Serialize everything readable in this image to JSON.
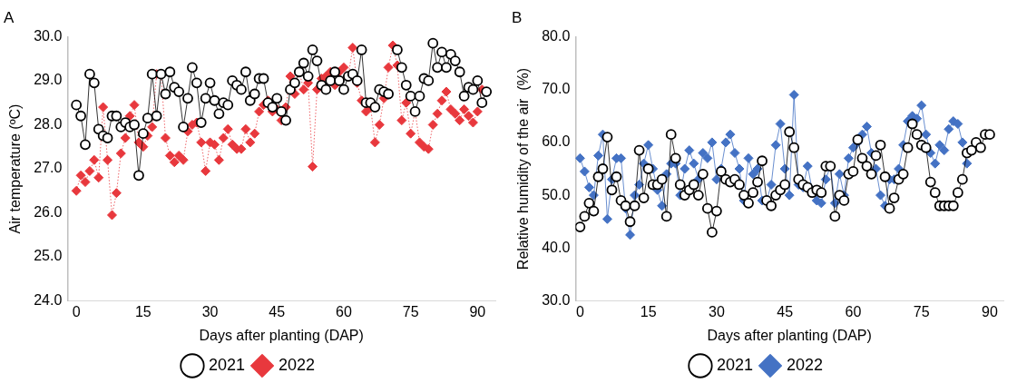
{
  "chart_data": [
    {
      "type": "line",
      "title": "A",
      "xlabel": "Days after planting (DAP)",
      "ylabel": "Air temperature (ºC)",
      "xlim": [
        -2,
        94
      ],
      "xticks": [
        0,
        15,
        30,
        45,
        60,
        75,
        90
      ],
      "ylim": [
        24,
        30
      ],
      "yticks": [
        {
          "value": 24,
          "label": "24.0"
        },
        {
          "value": 25,
          "label": "25.0"
        },
        {
          "value": 26,
          "label": "26.0"
        },
        {
          "value": 27,
          "label": "27.0"
        },
        {
          "value": 28,
          "label": "28.0"
        },
        {
          "value": 29,
          "label": "29.0"
        },
        {
          "value": 30,
          "label": "30.0"
        }
      ],
      "legend": "bottom",
      "grid": false,
      "series": [
        {
          "name": "2021",
          "color": "#000000",
          "marker": "circle",
          "line_style": "solid",
          "x": [
            0,
            1,
            2,
            3,
            4,
            5,
            6,
            7,
            8,
            9,
            10,
            11,
            12,
            13,
            14,
            15,
            16,
            17,
            18,
            19,
            20,
            21,
            22,
            23,
            24,
            25,
            26,
            27,
            28,
            29,
            30,
            31,
            32,
            33,
            34,
            35,
            36,
            37,
            38,
            39,
            40,
            41,
            42,
            43,
            44,
            45,
            46,
            47,
            48,
            49,
            50,
            51,
            52,
            53,
            54,
            55,
            56,
            57,
            58,
            59,
            60,
            61,
            62,
            63,
            64,
            65,
            66,
            67,
            68,
            69,
            70,
            71,
            72,
            73,
            74,
            75,
            76,
            77,
            78,
            79,
            80,
            81,
            82,
            83,
            84,
            85,
            86,
            87,
            88,
            89,
            90,
            91,
            92
          ],
          "values": [
            28.45,
            28.2,
            27.55,
            29.15,
            28.95,
            27.9,
            27.75,
            27.7,
            28.2,
            28.2,
            27.95,
            28.05,
            27.95,
            28.0,
            26.85,
            27.8,
            28.15,
            29.15,
            28.2,
            29.15,
            28.7,
            29.2,
            28.85,
            28.75,
            27.95,
            28.6,
            29.3,
            28.95,
            28.05,
            28.6,
            28.95,
            28.55,
            28.25,
            28.5,
            28.45,
            29.0,
            28.9,
            28.8,
            29.2,
            28.55,
            28.7,
            29.05,
            29.05,
            28.5,
            28.4,
            28.6,
            28.3,
            28.1,
            28.8,
            28.95,
            29.2,
            29.4,
            29.1,
            29.7,
            29.45,
            28.9,
            28.8,
            29.0,
            29.2,
            29.0,
            28.8,
            29.1,
            29.15,
            29.0,
            29.7,
            28.5,
            28.5,
            28.4,
            28.8,
            28.75,
            28.7,
            null,
            29.7,
            29.3,
            28.9,
            28.65,
            28.3,
            28.65,
            29.05,
            29.0,
            29.85,
            29.3,
            29.65,
            29.3,
            29.6,
            29.45,
            29.2,
            28.65,
            28.85,
            28.8,
            29.0,
            28.5,
            28.75
          ]
        },
        {
          "name": "2022",
          "color": "#e8383d",
          "marker": "diamond",
          "line_style": "dotted",
          "x": [
            0,
            1,
            2,
            3,
            4,
            5,
            6,
            7,
            8,
            9,
            10,
            11,
            12,
            13,
            14,
            15,
            16,
            17,
            18,
            19,
            20,
            21,
            22,
            23,
            24,
            25,
            26,
            27,
            28,
            29,
            30,
            31,
            32,
            33,
            34,
            35,
            36,
            37,
            38,
            39,
            40,
            41,
            42,
            43,
            44,
            45,
            46,
            47,
            48,
            49,
            50,
            51,
            52,
            53,
            54,
            55,
            56,
            57,
            58,
            59,
            60,
            61,
            62,
            63,
            64,
            65,
            66,
            67,
            68,
            69,
            70,
            71,
            72,
            73,
            74,
            75,
            76,
            77,
            78,
            79,
            80,
            81,
            82,
            83,
            84,
            85,
            86,
            87,
            88,
            89,
            90,
            91
          ],
          "values": [
            26.5,
            26.85,
            26.7,
            26.95,
            27.2,
            26.8,
            28.4,
            27.2,
            25.95,
            26.45,
            27.35,
            27.7,
            28.2,
            28.45,
            27.6,
            27.5,
            27.75,
            27.95,
            29.15,
            29.15,
            27.7,
            27.3,
            27.15,
            27.3,
            27.2,
            27.85,
            28.0,
            28.05,
            27.6,
            26.95,
            27.6,
            27.55,
            27.2,
            27.7,
            27.9,
            27.55,
            27.45,
            27.45,
            27.9,
            27.6,
            27.8,
            28.3,
            28.45,
            28.55,
            28.3,
            28.35,
            28.1,
            28.4,
            29.1,
            28.7,
            29.2,
            28.8,
            28.95,
            27.05,
            28.8,
            29.05,
            29.1,
            29.2,
            28.9,
            29.2,
            29.3,
            29.1,
            29.75,
            28.95,
            28.55,
            28.3,
            28.4,
            27.6,
            28.0,
            28.6,
            29.3,
            29.8,
            29.35,
            28.1,
            28.5,
            27.8,
            28.3,
            27.6,
            27.5,
            27.45,
            28.0,
            28.25,
            28.55,
            28.75,
            28.35,
            28.25,
            28.1,
            28.35,
            28.2,
            28.05,
            28.3,
            28.8
          ]
        }
      ]
    },
    {
      "type": "line",
      "title": "B",
      "xlabel": "Days after planting (DAP)",
      "ylabel": "Relative humidity of the air  (%)",
      "xlim": [
        -1,
        93
      ],
      "xticks": [
        0,
        15,
        30,
        45,
        60,
        75,
        90
      ],
      "ylim": [
        30,
        80
      ],
      "yticks": [
        {
          "value": 30,
          "label": "30.0"
        },
        {
          "value": 40,
          "label": "40.0"
        },
        {
          "value": 50,
          "label": "50.0"
        },
        {
          "value": 60,
          "label": "60.0"
        },
        {
          "value": 70,
          "label": "70.0"
        },
        {
          "value": 80,
          "label": "80.0"
        }
      ],
      "legend": "bottom",
      "grid": false,
      "series": [
        {
          "name": "2021",
          "color": "#000000",
          "marker": "circle",
          "line_style": "solid",
          "x": [
            0,
            1,
            2,
            3,
            4,
            5,
            6,
            7,
            8,
            9,
            10,
            11,
            12,
            13,
            14,
            15,
            16,
            17,
            18,
            19,
            20,
            21,
            22,
            23,
            24,
            25,
            26,
            27,
            28,
            29,
            30,
            31,
            32,
            33,
            34,
            35,
            36,
            37,
            38,
            39,
            40,
            41,
            42,
            43,
            44,
            45,
            46,
            47,
            48,
            49,
            50,
            51,
            52,
            53,
            54,
            55,
            56,
            57,
            58,
            59,
            60,
            61,
            62,
            63,
            64,
            65,
            66,
            67,
            68,
            69,
            70,
            71,
            72,
            73,
            74,
            75,
            76,
            77,
            78,
            79,
            80,
            81,
            82,
            83,
            84,
            85,
            86,
            87,
            88,
            89,
            90
          ],
          "values": [
            44,
            46,
            48.5,
            47,
            53.5,
            55,
            61,
            51,
            53.5,
            49,
            48,
            45,
            48,
            58.5,
            49.5,
            55,
            52,
            52,
            53,
            46,
            61.5,
            57,
            52,
            50,
            51,
            52,
            50,
            54,
            47.5,
            43,
            47,
            54.5,
            53,
            52.5,
            53,
            52,
            50,
            48.5,
            50.5,
            52.5,
            56.5,
            49,
            48,
            50,
            51,
            52,
            62,
            59,
            53,
            52,
            51.5,
            50.5,
            51,
            50.5,
            55.5,
            55.5,
            46,
            50,
            49,
            54,
            54.5,
            60.5,
            57,
            55.5,
            54,
            57.5,
            59.5,
            53.5,
            47.5,
            49.5,
            53,
            54,
            59,
            63.5,
            61.5,
            59.5,
            59,
            52.5,
            50.5,
            48,
            48,
            48,
            48,
            50.5,
            53,
            58,
            58.5,
            60,
            59,
            61.5,
            61.5
          ]
        },
        {
          "name": "2022",
          "color": "#4472c4",
          "marker": "diamond",
          "line_style": "solid",
          "x": [
            0,
            1,
            2,
            3,
            4,
            5,
            6,
            7,
            8,
            9,
            10,
            11,
            12,
            13,
            14,
            15,
            16,
            17,
            18,
            19,
            20,
            21,
            22,
            23,
            24,
            25,
            26,
            27,
            28,
            29,
            30,
            31,
            32,
            33,
            34,
            35,
            36,
            37,
            38,
            39,
            40,
            41,
            42,
            43,
            44,
            45,
            46,
            47,
            48,
            49,
            50,
            51,
            52,
            53,
            54,
            55,
            56,
            57,
            58,
            59,
            60,
            61,
            62,
            63,
            64,
            65,
            66,
            67,
            68,
            69,
            70,
            71,
            72,
            73,
            74,
            75,
            76,
            77,
            78,
            79,
            80,
            81,
            82,
            83,
            84,
            85
          ],
          "values": [
            57,
            54.5,
            51.5,
            50,
            57.5,
            61.5,
            45.5,
            53,
            57,
            57,
            47.5,
            42.5,
            50,
            52,
            56,
            59.5,
            55,
            51,
            48,
            54,
            56,
            56,
            50,
            55,
            58.5,
            56,
            53,
            58,
            57,
            60,
            53,
            55,
            60,
            61.5,
            58,
            55,
            49,
            57,
            54,
            55,
            49,
            49,
            52,
            59.5,
            63.5,
            55,
            50,
            69,
            52,
            51.5,
            55.5,
            51,
            49,
            48.5,
            53,
            55.5,
            48.5,
            54,
            50,
            57,
            59,
            60,
            61.5,
            63,
            58,
            55,
            50,
            48,
            53,
            53,
            55,
            59.5,
            64,
            65,
            64.5,
            67,
            61.5,
            58,
            56,
            59.5,
            58.5,
            62.5,
            64,
            63.5,
            60,
            56
          ]
        }
      ]
    }
  ]
}
